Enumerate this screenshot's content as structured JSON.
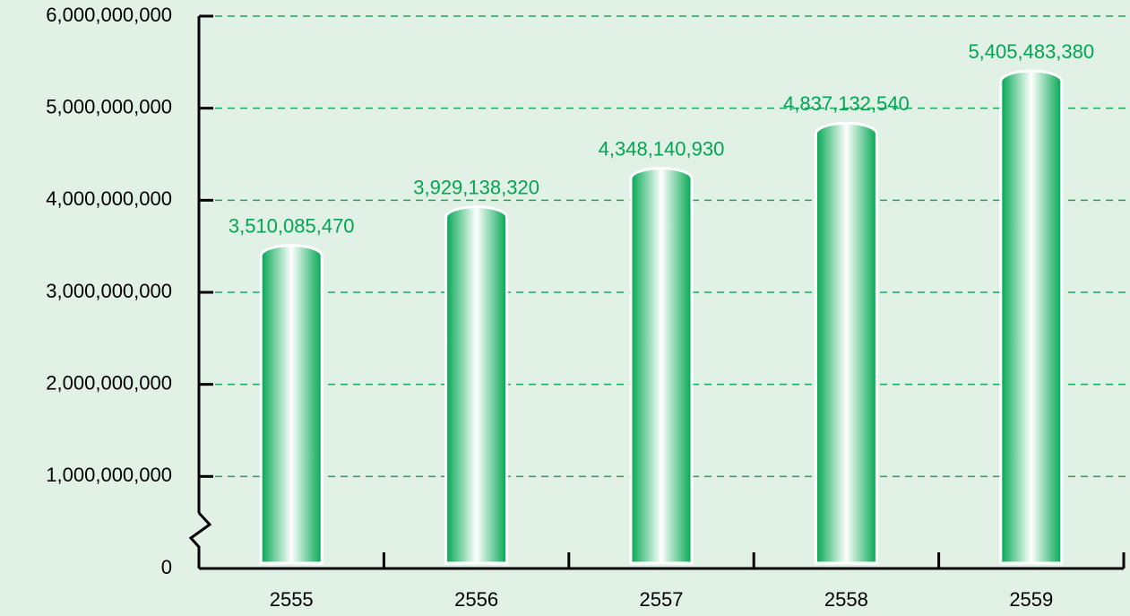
{
  "chart_data": {
    "type": "bar",
    "categories": [
      "2555",
      "2556",
      "2557",
      "2558",
      "2559"
    ],
    "values": [
      3510085470,
      3929138320,
      4348140930,
      4837132540,
      5405483380
    ],
    "value_labels": [
      "3,510,085,470",
      "3,929,138,320",
      "4,348,140,930",
      "4,837,132,540",
      "5,405,483,380"
    ],
    "color": "#00a651",
    "ylim": [
      0,
      6000000000
    ],
    "yticks": [
      0,
      {
        "value": 1000000000,
        "label": "1,000,000,000"
      },
      {
        "value": 2000000000,
        "label": "2,000,000,000"
      },
      {
        "value": 3000000000,
        "label": "3,000,000,000"
      },
      {
        "value": 4000000000,
        "label": "4,000,000,000"
      },
      {
        "value": 5000000000,
        "label": "5,000,000,000"
      },
      {
        "value": 6000000000,
        "label": "6,000,000,000"
      }
    ],
    "grid": true
  }
}
